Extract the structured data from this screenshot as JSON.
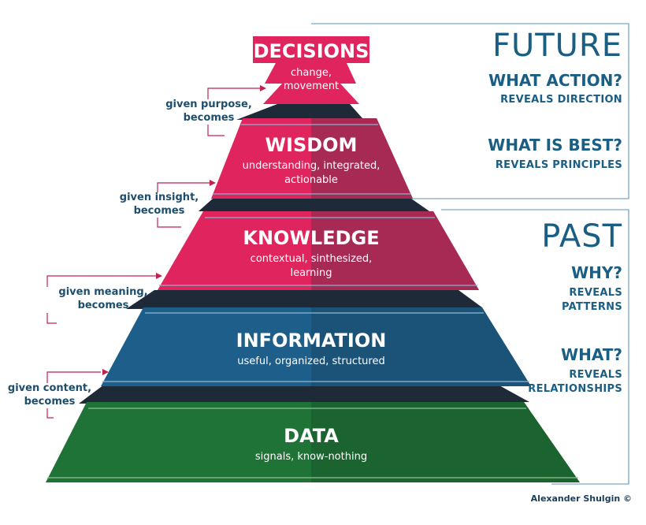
{
  "levels": {
    "decisions": {
      "title": "DECISIONS",
      "desc1": "change,",
      "desc2": "movement"
    },
    "wisdom": {
      "title": "WISDOM",
      "desc1": "understanding, integrated,",
      "desc2": "actionable"
    },
    "knowledge": {
      "title": "KNOWLEDGE",
      "desc1": "contextual, sinthesized,",
      "desc2": "learning"
    },
    "information": {
      "title": "INFORMATION",
      "desc1": "useful, organized, structured"
    },
    "data": {
      "title": "DATA",
      "desc1": "signals, know-nothing"
    }
  },
  "connectors": {
    "purpose": {
      "line1": "given purpose,",
      "line2": "becomes"
    },
    "insight": {
      "line1": "given insight,",
      "line2": "becomes"
    },
    "meaning": {
      "line1": "given meaning,",
      "line2": "becomes"
    },
    "content": {
      "line1": "given content,",
      "line2": "becomes"
    }
  },
  "future": {
    "heading": "FUTURE",
    "q1": "WHAT ACTION?",
    "q1_sub": "REVEALS DIRECTION",
    "q2": "WHAT IS BEST?",
    "q2_sub": "REVEALS PRINCIPLES"
  },
  "past": {
    "heading": "PAST",
    "q1": "WHY?",
    "q1_sub1": "REVEALS",
    "q1_sub2": "PATTERNS",
    "q2": "WHAT?",
    "q2_sub1": "REVEALS",
    "q2_sub2": "RELATIONSHIPS"
  },
  "credit": "Alexander Shulgin ©",
  "colors": {
    "red": "#e0245e",
    "red_dark": "#a72a55",
    "blue": "#1d5f8a",
    "blue_dark": "#1b5278",
    "green": "#1f7336",
    "green_dark": "#1b6430",
    "text_blue": "#1b5e84",
    "frame": "#7aa7c4"
  }
}
